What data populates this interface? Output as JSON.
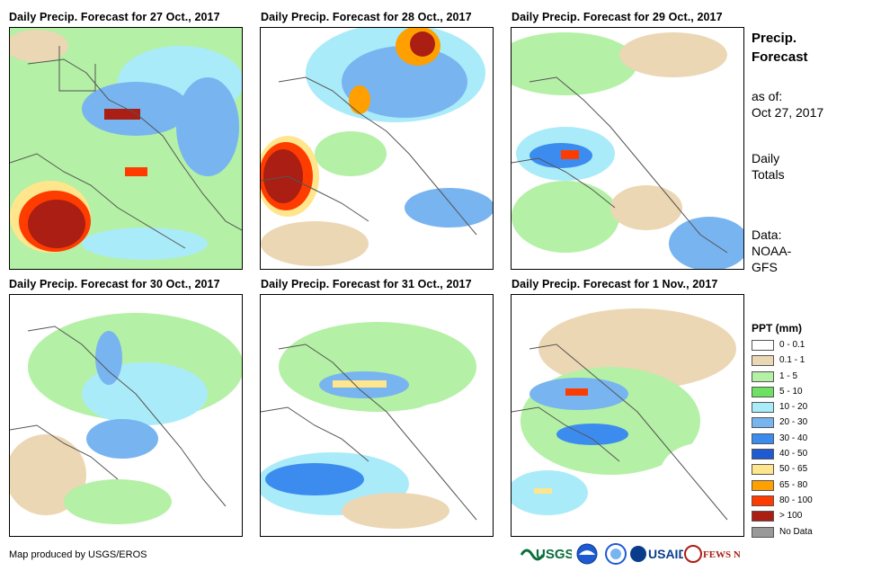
{
  "panels": [
    {
      "title": "Daily Precip. Forecast for 27 Oct., 2017"
    },
    {
      "title": "Daily Precip. Forecast for 28 Oct., 2017"
    },
    {
      "title": "Daily Precip. Forecast for 29 Oct., 2017"
    },
    {
      "title": "Daily Precip. Forecast for 30 Oct., 2017"
    },
    {
      "title": "Daily Precip. Forecast for 31 Oct., 2017"
    },
    {
      "title": "Daily Precip. Forecast for 1 Nov., 2017"
    }
  ],
  "sidebar": {
    "title_line1": "Precip.",
    "title_line2": "Forecast",
    "asof_label": "as of:",
    "asof_date": "Oct 27, 2017",
    "totals_line1": "Daily",
    "totals_line2": "Totals",
    "data_line1": "Data:",
    "data_line2": "NOAA-",
    "data_line3": "GFS"
  },
  "legend": {
    "title": "PPT (mm)",
    "items": [
      {
        "label": "0 - 0.1",
        "color": "#ffffff"
      },
      {
        "label": "0.1 - 1",
        "color": "#ecd7b4"
      },
      {
        "label": "1 - 5",
        "color": "#b4f0a5"
      },
      {
        "label": "5 - 10",
        "color": "#6ee164"
      },
      {
        "label": "10 - 20",
        "color": "#aaebfa"
      },
      {
        "label": "20 - 30",
        "color": "#78b4f0"
      },
      {
        "label": "30 - 40",
        "color": "#3c8cf0"
      },
      {
        "label": "40 - 50",
        "color": "#1e5ad2"
      },
      {
        "label": "50 - 65",
        "color": "#ffe68c"
      },
      {
        "label": "65 - 80",
        "color": "#ffa000"
      },
      {
        "label": "80 - 100",
        "color": "#ff3c00"
      },
      {
        "label": "> 100",
        "color": "#aa1e14"
      },
      {
        "label": "No Data",
        "color": "#999999"
      }
    ]
  },
  "footer": {
    "credit": "Map produced by USGS/EROS",
    "logos": {
      "usgs": "USGS",
      "usaid": "USAID",
      "fewsnet": "FEWS NET"
    }
  }
}
